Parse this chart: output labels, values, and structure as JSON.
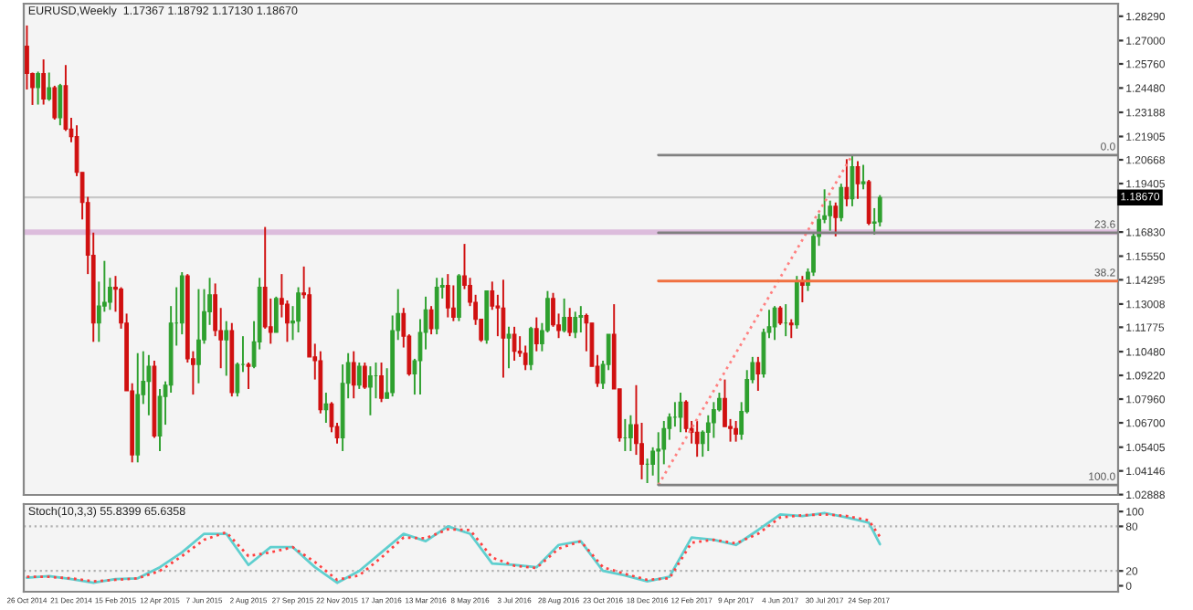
{
  "chart_data": [
    {
      "type": "candlestick",
      "title": "EURUSD,Weekly  1.17367 1.18792 1.17130 1.18670",
      "x": [
        "2014-10-26",
        "2014-11-02",
        "2014-11-09",
        "2014-11-16",
        "2014-11-23",
        "2014-11-30",
        "2014-12-07",
        "2014-12-14",
        "2014-12-21",
        "2014-12-28",
        "2015-01-04",
        "2015-01-11",
        "2015-01-18",
        "2015-01-25",
        "2015-02-01",
        "2015-02-08",
        "2015-02-15",
        "2015-02-22",
        "2015-03-01",
        "2015-03-08",
        "2015-03-15",
        "2015-03-22",
        "2015-03-29",
        "2015-04-05",
        "2015-04-12",
        "2015-04-19",
        "2015-04-26",
        "2015-05-03",
        "2015-05-10",
        "2015-05-17",
        "2015-05-24",
        "2015-05-31",
        "2015-06-07",
        "2015-06-14",
        "2015-06-21",
        "2015-06-28",
        "2015-07-05",
        "2015-07-12",
        "2015-07-19",
        "2015-07-26",
        "2015-08-02",
        "2015-08-09",
        "2015-08-16",
        "2015-08-23",
        "2015-08-30",
        "2015-09-06",
        "2015-09-13",
        "2015-09-20",
        "2015-09-27",
        "2015-10-04",
        "2015-10-11",
        "2015-10-18",
        "2015-10-25",
        "2015-11-01",
        "2015-11-08",
        "2015-11-15",
        "2015-11-22",
        "2015-11-29",
        "2015-12-06",
        "2015-12-13",
        "2015-12-20",
        "2015-12-27",
        "2016-01-03",
        "2016-01-10",
        "2016-01-17",
        "2016-01-24",
        "2016-01-31",
        "2016-02-07",
        "2016-02-14",
        "2016-02-21",
        "2016-02-28",
        "2016-03-06",
        "2016-03-13",
        "2016-03-20",
        "2016-03-27",
        "2016-04-03",
        "2016-04-10",
        "2016-04-17",
        "2016-04-24",
        "2016-05-01",
        "2016-05-08",
        "2016-05-15",
        "2016-05-22",
        "2016-05-29",
        "2016-06-05",
        "2016-06-12",
        "2016-06-19",
        "2016-06-26",
        "2016-07-03",
        "2016-07-10",
        "2016-07-17",
        "2016-07-24",
        "2016-07-31",
        "2016-08-07",
        "2016-08-14",
        "2016-08-21",
        "2016-08-28",
        "2016-09-04",
        "2016-09-11",
        "2016-09-18",
        "2016-09-25",
        "2016-10-02",
        "2016-10-09",
        "2016-10-16",
        "2016-10-23",
        "2016-10-30",
        "2016-11-06",
        "2016-11-13",
        "2016-11-20",
        "2016-11-27",
        "2016-12-04",
        "2016-12-11",
        "2016-12-18",
        "2016-12-25",
        "2017-01-01",
        "2017-01-08",
        "2017-01-15",
        "2017-01-22",
        "2017-01-29",
        "2017-02-05",
        "2017-02-12",
        "2017-02-19",
        "2017-02-26",
        "2017-03-05",
        "2017-03-12",
        "2017-03-19",
        "2017-03-26",
        "2017-04-02",
        "2017-04-09",
        "2017-04-16",
        "2017-04-23",
        "2017-04-30",
        "2017-05-07",
        "2017-05-14",
        "2017-05-21",
        "2017-05-28",
        "2017-06-04",
        "2017-06-11",
        "2017-06-18",
        "2017-06-25",
        "2017-07-02",
        "2017-07-09",
        "2017-07-16",
        "2017-07-23",
        "2017-07-30",
        "2017-08-06",
        "2017-08-13",
        "2017-08-20",
        "2017-08-27",
        "2017-09-03",
        "2017-09-10",
        "2017-09-17",
        "2017-09-24",
        "2017-10-01",
        "2017-10-08"
      ],
      "ohlc": [
        [
          1.267,
          1.278,
          1.244,
          1.2525
        ],
        [
          1.2525,
          1.253,
          1.2358,
          1.245
        ],
        [
          1.245,
          1.2535,
          1.236,
          1.2525
        ],
        [
          1.2525,
          1.26,
          1.236,
          1.239
        ],
        [
          1.239,
          1.253,
          1.238,
          1.245
        ],
        [
          1.245,
          1.246,
          1.228,
          1.229
        ],
        [
          1.229,
          1.247,
          1.225,
          1.246
        ],
        [
          1.246,
          1.257,
          1.222,
          1.223
        ],
        [
          1.223,
          1.229,
          1.216,
          1.219
        ],
        [
          1.219,
          1.225,
          1.198,
          1.2
        ],
        [
          1.2,
          1.2,
          1.175,
          1.184
        ],
        [
          1.184,
          1.187,
          1.146,
          1.156
        ],
        [
          1.156,
          1.168,
          1.11,
          1.12
        ],
        [
          1.12,
          1.142,
          1.11,
          1.129
        ],
        [
          1.129,
          1.153,
          1.126,
          1.131
        ],
        [
          1.131,
          1.144,
          1.127,
          1.139
        ],
        [
          1.139,
          1.145,
          1.126,
          1.138
        ],
        [
          1.138,
          1.139,
          1.117,
          1.12
        ],
        [
          1.12,
          1.125,
          1.084,
          1.084
        ],
        [
          1.084,
          1.088,
          1.046,
          1.05
        ],
        [
          1.05,
          1.104,
          1.046,
          1.082
        ],
        [
          1.082,
          1.105,
          1.077,
          1.089
        ],
        [
          1.089,
          1.103,
          1.071,
          1.097
        ],
        [
          1.097,
          1.1,
          1.059,
          1.06
        ],
        [
          1.06,
          1.085,
          1.052,
          1.081
        ],
        [
          1.081,
          1.089,
          1.066,
          1.087
        ],
        [
          1.087,
          1.129,
          1.083,
          1.12
        ],
        [
          1.12,
          1.139,
          1.108,
          1.12
        ],
        [
          1.12,
          1.147,
          1.114,
          1.145
        ],
        [
          1.145,
          1.146,
          1.099,
          1.101
        ],
        [
          1.101,
          1.105,
          1.082,
          1.098
        ],
        [
          1.098,
          1.138,
          1.088,
          1.111
        ],
        [
          1.111,
          1.138,
          1.109,
          1.126
        ],
        [
          1.126,
          1.144,
          1.119,
          1.135
        ],
        [
          1.135,
          1.141,
          1.113,
          1.116
        ],
        [
          1.116,
          1.128,
          1.096,
          1.111
        ],
        [
          1.111,
          1.121,
          1.092,
          1.116
        ],
        [
          1.116,
          1.12,
          1.081,
          1.083
        ],
        [
          1.083,
          1.099,
          1.081,
          1.098
        ],
        [
          1.098,
          1.113,
          1.094,
          1.098
        ],
        [
          1.098,
          1.099,
          1.085,
          1.097
        ],
        [
          1.097,
          1.121,
          1.096,
          1.11
        ],
        [
          1.11,
          1.144,
          1.106,
          1.139
        ],
        [
          1.139,
          1.171,
          1.117,
          1.118
        ],
        [
          1.118,
          1.133,
          1.109,
          1.115
        ],
        [
          1.115,
          1.134,
          1.115,
          1.133
        ],
        [
          1.133,
          1.146,
          1.123,
          1.13
        ],
        [
          1.13,
          1.132,
          1.11,
          1.12
        ],
        [
          1.12,
          1.129,
          1.111,
          1.121
        ],
        [
          1.121,
          1.139,
          1.115,
          1.136
        ],
        [
          1.136,
          1.15,
          1.133,
          1.135
        ],
        [
          1.135,
          1.139,
          1.102,
          1.102
        ],
        [
          1.102,
          1.109,
          1.09,
          1.1
        ],
        [
          1.1,
          1.105,
          1.072,
          1.074
        ],
        [
          1.074,
          1.083,
          1.067,
          1.077
        ],
        [
          1.077,
          1.078,
          1.062,
          1.065
        ],
        [
          1.065,
          1.067,
          1.056,
          1.059
        ],
        [
          1.059,
          1.098,
          1.052,
          1.088
        ],
        [
          1.088,
          1.104,
          1.08,
          1.099
        ],
        [
          1.099,
          1.105,
          1.08,
          1.087
        ],
        [
          1.087,
          1.099,
          1.085,
          1.097
        ],
        [
          1.097,
          1.099,
          1.085,
          1.086
        ],
        [
          1.086,
          1.097,
          1.071,
          1.092
        ],
        [
          1.092,
          1.099,
          1.08,
          1.092
        ],
        [
          1.092,
          1.099,
          1.078,
          1.08
        ],
        [
          1.08,
          1.096,
          1.08,
          1.083
        ],
        [
          1.083,
          1.124,
          1.081,
          1.116
        ],
        [
          1.116,
          1.138,
          1.111,
          1.125
        ],
        [
          1.125,
          1.128,
          1.107,
          1.113
        ],
        [
          1.113,
          1.114,
          1.092,
          1.093
        ],
        [
          1.093,
          1.101,
          1.082,
          1.1
        ],
        [
          1.1,
          1.122,
          1.082,
          1.115
        ],
        [
          1.115,
          1.134,
          1.106,
          1.127
        ],
        [
          1.127,
          1.129,
          1.114,
          1.117
        ],
        [
          1.117,
          1.144,
          1.114,
          1.139
        ],
        [
          1.139,
          1.144,
          1.133,
          1.14
        ],
        [
          1.14,
          1.146,
          1.123,
          1.128
        ],
        [
          1.128,
          1.14,
          1.121,
          1.123
        ],
        [
          1.123,
          1.146,
          1.121,
          1.145
        ],
        [
          1.145,
          1.162,
          1.138,
          1.14
        ],
        [
          1.14,
          1.144,
          1.129,
          1.131
        ],
        [
          1.131,
          1.135,
          1.119,
          1.122
        ],
        [
          1.122,
          1.122,
          1.11,
          1.111
        ],
        [
          1.111,
          1.137,
          1.109,
          1.137
        ],
        [
          1.137,
          1.142,
          1.127,
          1.129
        ],
        [
          1.129,
          1.135,
          1.113,
          1.128
        ],
        [
          1.128,
          1.143,
          1.091,
          1.112
        ],
        [
          1.112,
          1.118,
          1.096,
          1.114
        ],
        [
          1.114,
          1.118,
          1.1,
          1.105
        ],
        [
          1.105,
          1.113,
          1.102,
          1.104
        ],
        [
          1.104,
          1.108,
          1.095,
          1.098
        ],
        [
          1.098,
          1.118,
          1.095,
          1.117
        ],
        [
          1.117,
          1.123,
          1.105,
          1.109
        ],
        [
          1.109,
          1.12,
          1.105,
          1.116
        ],
        [
          1.116,
          1.137,
          1.115,
          1.133
        ],
        [
          1.133,
          1.136,
          1.118,
          1.119
        ],
        [
          1.119,
          1.125,
          1.112,
          1.116
        ],
        [
          1.116,
          1.133,
          1.115,
          1.123
        ],
        [
          1.123,
          1.128,
          1.113,
          1.115
        ],
        [
          1.115,
          1.126,
          1.112,
          1.123
        ],
        [
          1.123,
          1.129,
          1.115,
          1.124
        ],
        [
          1.124,
          1.125,
          1.105,
          1.12
        ],
        [
          1.12,
          1.12,
          1.097,
          1.097
        ],
        [
          1.097,
          1.103,
          1.086,
          1.088
        ],
        [
          1.088,
          1.1,
          1.085,
          1.098
        ],
        [
          1.098,
          1.114,
          1.095,
          1.114
        ],
        [
          1.114,
          1.13,
          1.085,
          1.085
        ],
        [
          1.085,
          1.085,
          1.057,
          1.059
        ],
        [
          1.059,
          1.069,
          1.052,
          1.059
        ],
        [
          1.059,
          1.071,
          1.052,
          1.066
        ],
        [
          1.066,
          1.087,
          1.05,
          1.056
        ],
        [
          1.056,
          1.067,
          1.037,
          1.045
        ],
        [
          1.045,
          1.048,
          1.035,
          1.045
        ],
        [
          1.045,
          1.054,
          1.039,
          1.052
        ],
        [
          1.052,
          1.062,
          1.034,
          1.053
        ],
        [
          1.053,
          1.068,
          1.045,
          1.064
        ],
        [
          1.064,
          1.072,
          1.058,
          1.07
        ],
        [
          1.07,
          1.078,
          1.065,
          1.07
        ],
        [
          1.07,
          1.083,
          1.062,
          1.078
        ],
        [
          1.078,
          1.079,
          1.062,
          1.064
        ],
        [
          1.064,
          1.068,
          1.056,
          1.062
        ],
        [
          1.062,
          1.068,
          1.049,
          1.056
        ],
        [
          1.056,
          1.063,
          1.049,
          1.062
        ],
        [
          1.062,
          1.071,
          1.052,
          1.067
        ],
        [
          1.067,
          1.078,
          1.059,
          1.074
        ],
        [
          1.074,
          1.083,
          1.073,
          1.08
        ],
        [
          1.08,
          1.09,
          1.065,
          1.065
        ],
        [
          1.065,
          1.069,
          1.057,
          1.064
        ],
        [
          1.064,
          1.068,
          1.057,
          1.061
        ],
        [
          1.061,
          1.078,
          1.058,
          1.073
        ],
        [
          1.073,
          1.095,
          1.072,
          1.09
        ],
        [
          1.09,
          1.102,
          1.088,
          1.099
        ],
        [
          1.099,
          1.102,
          1.084,
          1.093
        ],
        [
          1.093,
          1.117,
          1.091,
          1.115
        ],
        [
          1.115,
          1.127,
          1.112,
          1.118
        ],
        [
          1.118,
          1.129,
          1.111,
          1.128
        ],
        [
          1.128,
          1.129,
          1.119,
          1.12
        ],
        [
          1.12,
          1.13,
          1.113,
          1.12
        ],
        [
          1.12,
          1.122,
          1.112,
          1.119
        ],
        [
          1.119,
          1.145,
          1.117,
          1.142
        ],
        [
          1.142,
          1.145,
          1.131,
          1.14
        ],
        [
          1.14,
          1.149,
          1.137,
          1.147
        ],
        [
          1.147,
          1.168,
          1.145,
          1.166
        ],
        [
          1.166,
          1.178,
          1.161,
          1.175
        ],
        [
          1.175,
          1.191,
          1.173,
          1.177
        ],
        [
          1.177,
          1.185,
          1.169,
          1.182
        ],
        [
          1.182,
          1.184,
          1.166,
          1.176
        ],
        [
          1.176,
          1.194,
          1.174,
          1.192
        ],
        [
          1.192,
          1.207,
          1.182,
          1.186
        ],
        [
          1.186,
          1.2092,
          1.182,
          1.203
        ],
        [
          1.203,
          1.206,
          1.186,
          1.194
        ],
        [
          1.194,
          1.204,
          1.191,
          1.195
        ],
        [
          1.195,
          1.196,
          1.172,
          1.173
        ],
        [
          1.173,
          1.181,
          1.167,
          1.1737
        ],
        [
          1.17367,
          1.18792,
          1.1713,
          1.1867
        ]
      ],
      "series": [
        {
          "type": "line",
          "color": "#ff8080",
          "line_style": "dotted",
          "x": [
            "2017-01-01",
            "2017-09-03"
          ],
          "values": [
            1.034,
            1.2092
          ]
        },
        {
          "type": "line",
          "color": "#808080",
          "x": [
            "2017-01-01",
            "2018-08-05"
          ],
          "values": [
            1.2092,
            1.2092
          ]
        },
        {
          "type": "line",
          "color": "#808080",
          "x": [
            "2017-01-01",
            "2018-08-05"
          ],
          "values": [
            1.1679,
            1.1679
          ]
        },
        {
          "type": "line",
          "color": "#f07040",
          "x": [
            "2017-01-01",
            "2018-08-05"
          ],
          "values": [
            1.1423,
            1.1423
          ]
        },
        {
          "type": "line",
          "color": "#808080",
          "x": [
            "2017-01-01",
            "2018-08-05"
          ],
          "values": [
            1.034,
            1.034
          ]
        }
      ],
      "bands": [
        {
          "axis": "y",
          "from": 1.1668,
          "to": 1.1697,
          "color": "#dcbcdc"
        }
      ],
      "ref_lines": [
        {
          "axis": "y",
          "value": 1.1867,
          "label": "1.18670",
          "color": "#c8c8c8"
        }
      ],
      "annotations": [
        {
          "text": "0.0",
          "x": "2018-08-05",
          "y": 1.2092
        },
        {
          "text": "23.6",
          "x": "2018-08-05",
          "y": 1.1679
        },
        {
          "text": "38.2",
          "x": "2018-08-05",
          "y": 1.1423
        },
        {
          "text": "100.0",
          "x": "2018-08-05",
          "y": 1.034
        }
      ],
      "xlim": [
        "2014-10-22",
        "2018-08-05"
      ],
      "ylim": [
        1.0287,
        1.2896
      ],
      "yticks": [
        {
          "value": 1.2829,
          "label": "1.28290"
        },
        {
          "value": 1.27,
          "label": "1.27000"
        },
        {
          "value": 1.2576,
          "label": "1.25760"
        },
        {
          "value": 1.2448,
          "label": "1.24480"
        },
        {
          "value": 1.23188,
          "label": "1.23188"
        },
        {
          "value": 1.21905,
          "label": "1.21905"
        },
        {
          "value": 1.20668,
          "label": "1.20668"
        },
        {
          "value": 1.19405,
          "label": "1.19405"
        },
        {
          "value": 1.1683,
          "label": "1.16830"
        },
        {
          "value": 1.1555,
          "label": "1.15550"
        },
        {
          "value": 1.14295,
          "label": "1.14295"
        },
        {
          "value": 1.13008,
          "label": "1.13008"
        },
        {
          "value": 1.11775,
          "label": "1.11775"
        },
        {
          "value": 1.1048,
          "label": "1.10480"
        },
        {
          "value": 1.0922,
          "label": "1.09220"
        },
        {
          "value": 1.0796,
          "label": "1.07960"
        },
        {
          "value": 1.067,
          "label": "1.06700"
        },
        {
          "value": 1.05405,
          "label": "1.05405"
        },
        {
          "value": 1.04146,
          "label": "1.04146"
        },
        {
          "value": 1.02888,
          "label": "1.02888"
        }
      ],
      "tick_labels": "y"
    },
    {
      "type": "line",
      "title": "Stoch(10,3,3) 55.8399 65.6358",
      "series": [
        {
          "color": "#5fcfcf",
          "x": [
            "2014-10-26",
            "2014-11-23",
            "2014-12-21",
            "2015-01-18",
            "2015-02-15",
            "2015-03-15",
            "2015-04-12",
            "2015-05-10",
            "2015-06-07",
            "2015-07-05",
            "2015-08-02",
            "2015-08-30",
            "2015-09-27",
            "2015-10-25",
            "2015-11-22",
            "2015-12-20",
            "2016-01-17",
            "2016-02-14",
            "2016-03-13",
            "2016-04-10",
            "2016-05-08",
            "2016-06-05",
            "2016-07-03",
            "2016-07-31",
            "2016-08-28",
            "2016-09-25",
            "2016-10-23",
            "2016-11-20",
            "2016-12-18",
            "2017-01-15",
            "2017-02-12",
            "2017-03-12",
            "2017-04-09",
            "2017-05-07",
            "2017-06-04",
            "2017-07-02",
            "2017-07-30",
            "2017-08-27",
            "2017-09-24",
            "2017-10-08"
          ],
          "values": [
            11,
            13,
            9,
            4,
            9,
            10,
            25,
            45,
            70,
            70,
            28,
            52,
            52,
            25,
            4,
            20,
            45,
            70,
            60,
            80,
            70,
            30,
            28,
            25,
            55,
            60,
            20,
            14,
            6,
            12,
            65,
            62,
            55,
            75,
            96,
            94,
            98,
            92,
            85,
            56
          ]
        },
        {
          "color": "#ff4040",
          "line_style": "dotted",
          "x": [
            "2014-10-26",
            "2014-11-23",
            "2014-12-21",
            "2015-01-18",
            "2015-02-15",
            "2015-03-15",
            "2015-04-12",
            "2015-05-10",
            "2015-06-07",
            "2015-07-05",
            "2015-08-02",
            "2015-08-30",
            "2015-09-27",
            "2015-10-25",
            "2015-11-22",
            "2015-12-20",
            "2016-01-17",
            "2016-02-14",
            "2016-03-13",
            "2016-04-10",
            "2016-05-08",
            "2016-06-05",
            "2016-07-03",
            "2016-07-31",
            "2016-08-28",
            "2016-09-25",
            "2016-10-23",
            "2016-11-20",
            "2016-12-18",
            "2017-01-15",
            "2017-02-12",
            "2017-03-12",
            "2017-04-09",
            "2017-05-07",
            "2017-06-04",
            "2017-07-02",
            "2017-07-30",
            "2017-08-27",
            "2017-09-24",
            "2017-10-08"
          ],
          "values": [
            12,
            12,
            10,
            6,
            8,
            10,
            20,
            40,
            62,
            72,
            40,
            45,
            52,
            32,
            8,
            14,
            38,
            65,
            64,
            76,
            75,
            38,
            27,
            24,
            50,
            60,
            25,
            16,
            8,
            10,
            58,
            62,
            57,
            70,
            92,
            95,
            96,
            94,
            88,
            66
          ]
        }
      ],
      "ref_lines": [
        {
          "axis": "y",
          "value": 20,
          "color": "#b0b0b0",
          "line_style": "dotted"
        },
        {
          "axis": "y",
          "value": 80,
          "color": "#b0b0b0",
          "line_style": "dotted"
        }
      ],
      "xlim": [
        "2014-10-22",
        "2018-08-05"
      ],
      "ylim": [
        -8,
        110
      ],
      "yticks": [
        0,
        20,
        80,
        100
      ],
      "xticks": [
        {
          "value": "2014-10-26",
          "label": "26 Oct 2014"
        },
        {
          "value": "2014-12-21",
          "label": "21 Dec 2014"
        },
        {
          "value": "2015-02-15",
          "label": "15 Feb 2015"
        },
        {
          "value": "2015-04-12",
          "label": "12 Apr 2015"
        },
        {
          "value": "2015-06-07",
          "label": "7 Jun 2015"
        },
        {
          "value": "2015-08-02",
          "label": "2 Aug 2015"
        },
        {
          "value": "2015-09-27",
          "label": "27 Sep 2015"
        },
        {
          "value": "2015-11-22",
          "label": "22 Nov 2015"
        },
        {
          "value": "2016-01-17",
          "label": "17 Jan 2016"
        },
        {
          "value": "2016-03-13",
          "label": "13 Mar 2016"
        },
        {
          "value": "2016-05-08",
          "label": "8 May 2016"
        },
        {
          "value": "2016-07-03",
          "label": "3 Jul 2016"
        },
        {
          "value": "2016-08-28",
          "label": "28 Aug 2016"
        },
        {
          "value": "2016-10-23",
          "label": "23 Oct 2016"
        },
        {
          "value": "2016-12-18",
          "label": "18 Dec 2016"
        },
        {
          "value": "2017-02-12",
          "label": "12 Feb 2017"
        },
        {
          "value": "2017-04-09",
          "label": "9 Apr 2017"
        },
        {
          "value": "2017-06-04",
          "label": "4 Jun 2017"
        },
        {
          "value": "2017-07-30",
          "label": "30 Jul 2017"
        },
        {
          "value": "2017-09-24",
          "label": "24 Sep 2017"
        }
      ]
    }
  ]
}
